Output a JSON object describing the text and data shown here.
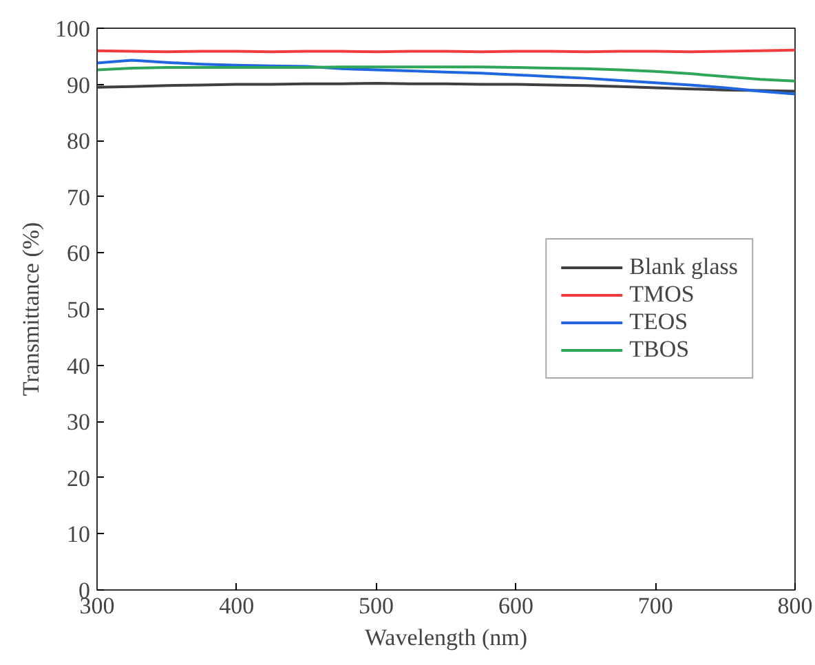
{
  "chart_data": {
    "type": "line",
    "xlabel": "Wavelength (nm)",
    "ylabel": "Transmittance (%)",
    "x": [
      300,
      325,
      350,
      375,
      400,
      425,
      450,
      475,
      500,
      525,
      550,
      575,
      600,
      625,
      650,
      675,
      700,
      725,
      750,
      775,
      800
    ],
    "series": [
      {
        "name": "Blank glass",
        "color": "#3f3f3f",
        "values": [
          89.5,
          89.6,
          89.8,
          89.9,
          90.0,
          90.0,
          90.1,
          90.1,
          90.2,
          90.1,
          90.1,
          90.0,
          90.0,
          89.9,
          89.8,
          89.6,
          89.4,
          89.2,
          89.0,
          88.9,
          88.8
        ]
      },
      {
        "name": "TMOS",
        "color": "#f03c3c",
        "values": [
          96.0,
          95.9,
          95.8,
          95.9,
          95.9,
          95.8,
          95.9,
          95.9,
          95.8,
          95.9,
          95.9,
          95.8,
          95.9,
          95.9,
          95.8,
          95.9,
          95.9,
          95.8,
          95.9,
          96.0,
          96.1
        ]
      },
      {
        "name": "TEOS",
        "color": "#1f66e0",
        "values": [
          93.8,
          94.3,
          93.9,
          93.6,
          93.4,
          93.3,
          93.2,
          92.8,
          92.6,
          92.4,
          92.2,
          92.0,
          91.7,
          91.4,
          91.1,
          90.7,
          90.3,
          89.9,
          89.4,
          88.8,
          88.3
        ]
      },
      {
        "name": "TBOS",
        "color": "#2ea65a",
        "values": [
          92.6,
          92.9,
          93.0,
          93.0,
          93.0,
          93.0,
          93.0,
          93.1,
          93.1,
          93.1,
          93.1,
          93.1,
          93.0,
          92.9,
          92.8,
          92.6,
          92.3,
          91.9,
          91.4,
          90.9,
          90.6
        ]
      }
    ],
    "xlim": [
      300,
      800
    ],
    "ylim": [
      0,
      100
    ],
    "xticks": [
      300,
      400,
      500,
      600,
      700,
      800
    ],
    "yticks": [
      0,
      10,
      20,
      30,
      40,
      50,
      60,
      70,
      80,
      90,
      100
    ],
    "grid": false,
    "legend": "right",
    "line_style": "solid"
  }
}
